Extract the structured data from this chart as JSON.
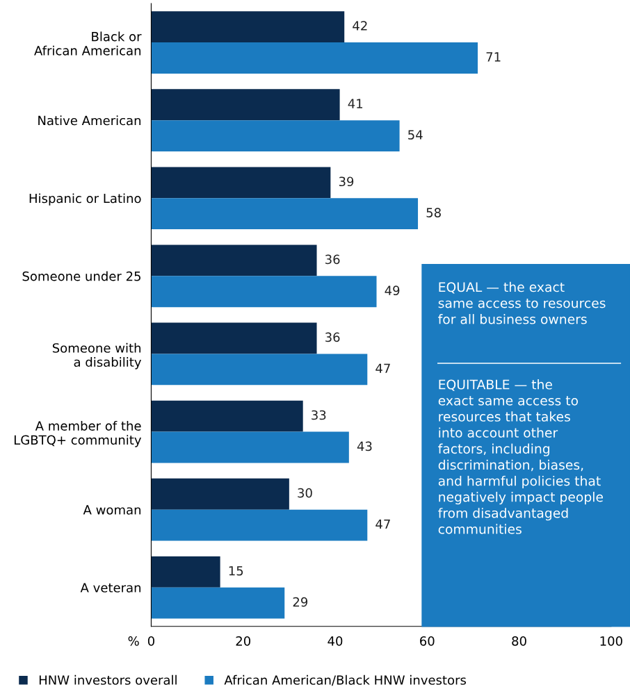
{
  "chart_data": {
    "type": "bar",
    "orientation": "horizontal",
    "categories": [
      "Black or\nAfrican American",
      "Native American",
      "Hispanic or Latino",
      "Someone under 25",
      "Someone with\na disability",
      "A member of the\nLGBTQ+ community",
      "A woman",
      "A veteran"
    ],
    "series": [
      {
        "name": "HNW investors overall",
        "color": "#0b2b4f",
        "values": [
          42,
          41,
          39,
          36,
          36,
          33,
          30,
          15
        ]
      },
      {
        "name": "African American/Black HNW investors",
        "color": "#1b7bc0",
        "values": [
          71,
          54,
          58,
          49,
          47,
          43,
          47,
          29
        ]
      }
    ],
    "xlabel": "%",
    "xlim": [
      0,
      100
    ],
    "xticks": [
      0,
      20,
      40,
      60,
      80,
      100
    ],
    "data_labels": true,
    "legend": "bottom",
    "grid": false,
    "annotations": [
      "EQUAL — the exact\nsame access to resources\nfor all business owners",
      "EQUITABLE — the\nexact same access to\nresources that takes\ninto account other\nfactors, including\ndiscrimination, biases,\nand harmful policies that\nnegatively impact people\nfrom disadvantaged\ncommunities"
    ]
  }
}
